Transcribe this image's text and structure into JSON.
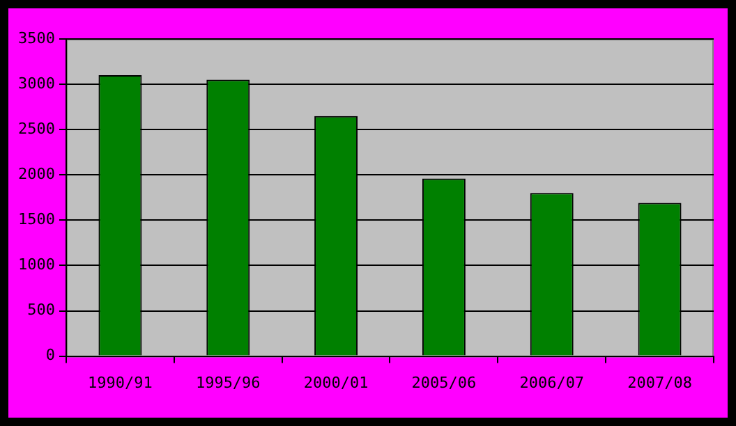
{
  "chart_data": {
    "type": "bar",
    "categories": [
      "1990/91",
      "1995/96",
      "2000/01",
      "2005/06",
      "2006/07",
      "2007/08"
    ],
    "values": [
      3100,
      3050,
      2650,
      1960,
      1800,
      1690
    ],
    "color": "#008000",
    "ylim": [
      0,
      3500
    ],
    "yticks": [
      0,
      500,
      1000,
      1500,
      2000,
      2500,
      3000,
      3500
    ],
    "grid": "y",
    "legend": false
  }
}
